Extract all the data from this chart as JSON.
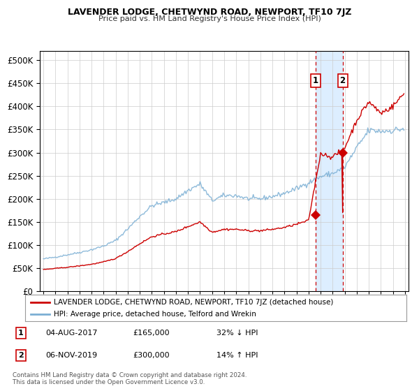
{
  "title": "LAVENDER LODGE, CHETWYND ROAD, NEWPORT, TF10 7JZ",
  "subtitle": "Price paid vs. HM Land Registry's House Price Index (HPI)",
  "legend_entry1": "LAVENDER LODGE, CHETWYND ROAD, NEWPORT, TF10 7JZ (detached house)",
  "legend_entry2": "HPI: Average price, detached house, Telford and Wrekin",
  "annotation1_date": "04-AUG-2017",
  "annotation1_price": "£165,000",
  "annotation1_hpi": "32% ↓ HPI",
  "annotation2_date": "06-NOV-2019",
  "annotation2_price": "£300,000",
  "annotation2_hpi": "14% ↑ HPI",
  "footer1": "Contains HM Land Registry data © Crown copyright and database right 2024.",
  "footer2": "This data is licensed under the Open Government Licence v3.0.",
  "transaction1_date_num": 2017.583,
  "transaction1_value": 165000,
  "transaction2_date_num": 2019.833,
  "transaction2_value": 300000,
  "red_color": "#cc0000",
  "blue_color": "#7bafd4",
  "highlight_bg": "#ddeeff",
  "ylim_max": 520000,
  "xlim_min": 1994.7,
  "xlim_max": 2025.3
}
